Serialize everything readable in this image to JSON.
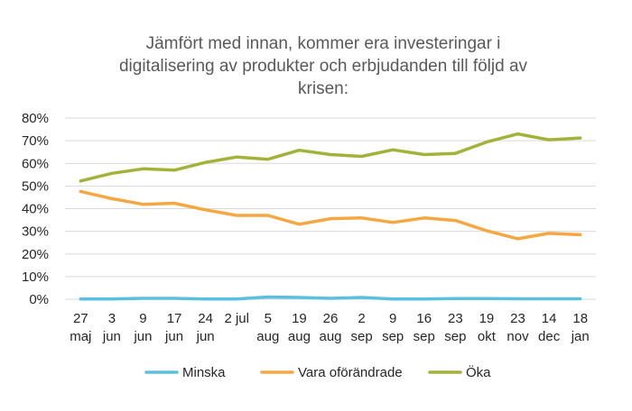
{
  "chart_data": {
    "type": "line",
    "title_lines": [
      "Jämfört med innan, kommer era investeringar i",
      "digitalisering av produkter och erbjudanden till följd av",
      "krisen:"
    ],
    "categories": [
      [
        "27",
        "maj"
      ],
      [
        "3",
        "jun"
      ],
      [
        "9",
        "jun"
      ],
      [
        "17",
        "jun"
      ],
      [
        "24",
        "jun"
      ],
      [
        "2 jul",
        ""
      ],
      [
        "5",
        "aug"
      ],
      [
        "19",
        "aug"
      ],
      [
        "26",
        "aug"
      ],
      [
        "2",
        "sep"
      ],
      [
        "9",
        "sep"
      ],
      [
        "16",
        "sep"
      ],
      [
        "23",
        "sep"
      ],
      [
        "19",
        "okt"
      ],
      [
        "23",
        "nov"
      ],
      [
        "14",
        "dec"
      ],
      [
        "18",
        "jan"
      ]
    ],
    "y_ticks": [
      "0%",
      "10%",
      "20%",
      "30%",
      "40%",
      "50%",
      "60%",
      "70%",
      "80%"
    ],
    "ylim": [
      0,
      80
    ],
    "grid": true,
    "legend_position": "bottom",
    "series": [
      {
        "name": "Minska",
        "color": "#5bc0de",
        "values": [
          0.1,
          0.1,
          0.4,
          0.4,
          0.1,
          0.1,
          1.0,
          0.8,
          0.4,
          0.8,
          0.1,
          0.1,
          0.3,
          0.3,
          0.2,
          0.2,
          0.2
        ]
      },
      {
        "name": "Vara oförändrade",
        "color": "#f5a742",
        "values": [
          47.6,
          44.4,
          41.9,
          42.4,
          39.5,
          37.0,
          37.0,
          33.1,
          35.6,
          35.9,
          33.9,
          35.9,
          34.8,
          30.3,
          26.7,
          29.1,
          28.5
        ]
      },
      {
        "name": "Öka",
        "color": "#a3b33a",
        "values": [
          52.2,
          55.6,
          57.6,
          57.0,
          60.4,
          62.8,
          61.8,
          65.8,
          63.9,
          63.1,
          66.0,
          63.9,
          64.4,
          69.4,
          73.0,
          70.4,
          71.2
        ]
      }
    ]
  }
}
